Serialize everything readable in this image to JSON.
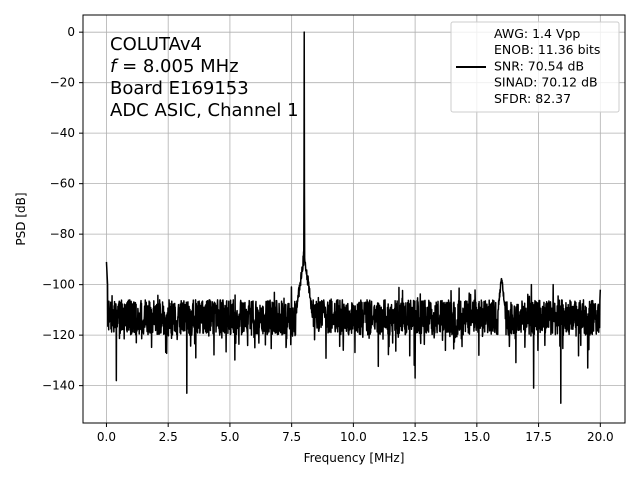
{
  "chart_data": {
    "type": "line",
    "xlabel": "Frequency [MHz]",
    "ylabel": "PSD [dB]",
    "xlim": [
      -0.95,
      21.0
    ],
    "ylim": [
      -154.8,
      6.8
    ],
    "x_ticks": [
      0.0,
      2.5,
      5.0,
      7.5,
      10.0,
      12.5,
      15.0,
      17.5,
      20.0
    ],
    "x_tick_labels": [
      "0.0",
      "2.5",
      "5.0",
      "7.5",
      "10.0",
      "12.5",
      "15.0",
      "17.5",
      "20.0"
    ],
    "y_ticks": [
      0,
      -20,
      -40,
      -60,
      -80,
      -100,
      -120,
      -140
    ],
    "y_tick_labels": [
      "0",
      "−20",
      "−40",
      "−60",
      "−80",
      "−100",
      "−120",
      "−140"
    ],
    "grid": true,
    "annotation_lines": [
      "COLUTAv4",
      "= 8.005 MHz",
      "Board E169153",
      "ADC ASIC, Channel  1"
    ],
    "annotation_f_symbol": "f",
    "legend": {
      "position": "upper right",
      "entries": [
        "AWG: 1.4 Vpp",
        "ENOB: 11.36 bits",
        "SNR: 70.54 dB",
        "SINAD: 70.12 dB",
        "SFDR: 82.37"
      ]
    },
    "series": [
      {
        "color": "#000000",
        "noise_floor_db": -113,
        "noise_range_db": [
          -125,
          -102
        ],
        "peaks": [
          {
            "x": 8.005,
            "y": 0
          },
          {
            "x": 0.0,
            "y": -91
          },
          {
            "x": 16.0,
            "y": -97
          },
          {
            "x": 20.0,
            "y": -102
          }
        ],
        "dips": [
          {
            "x": 0.4,
            "y": -138
          },
          {
            "x": 3.25,
            "y": -143
          },
          {
            "x": 17.3,
            "y": -141
          },
          {
            "x": 18.4,
            "y": -147
          },
          {
            "x": 12.5,
            "y": -137
          }
        ]
      }
    ]
  }
}
